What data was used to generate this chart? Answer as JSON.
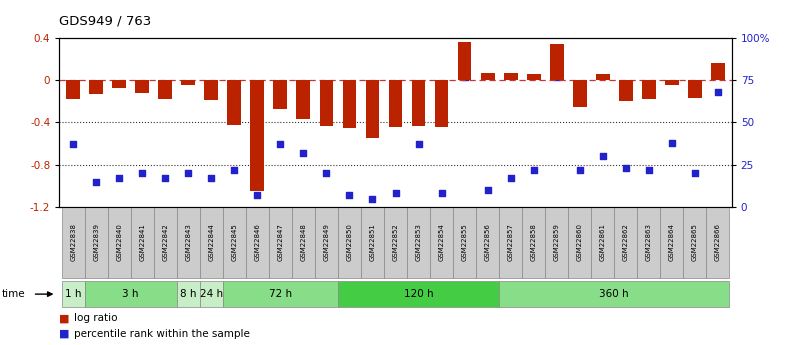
{
  "title": "GDS949 / 763",
  "samples": [
    "GSM22838",
    "GSM22839",
    "GSM22840",
    "GSM22841",
    "GSM22842",
    "GSM22843",
    "GSM22844",
    "GSM22845",
    "GSM22846",
    "GSM22847",
    "GSM22848",
    "GSM22849",
    "GSM22850",
    "GSM22851",
    "GSM22852",
    "GSM22853",
    "GSM22854",
    "GSM22855",
    "GSM22856",
    "GSM22857",
    "GSM22858",
    "GSM22859",
    "GSM22860",
    "GSM22861",
    "GSM22862",
    "GSM22863",
    "GSM22864",
    "GSM22865",
    "GSM22866"
  ],
  "log_ratio": [
    -0.18,
    -0.13,
    -0.07,
    -0.12,
    -0.18,
    -0.05,
    -0.19,
    -0.42,
    -1.05,
    -0.27,
    -0.37,
    -0.43,
    -0.45,
    -0.55,
    -0.44,
    -0.43,
    -0.44,
    0.36,
    0.07,
    0.07,
    0.06,
    0.34,
    -0.25,
    0.06,
    -0.2,
    -0.18,
    -0.05,
    -0.17,
    0.16
  ],
  "percentile": [
    37,
    15,
    17,
    20,
    17,
    20,
    17,
    22,
    7,
    37,
    32,
    20,
    7,
    5,
    8,
    37,
    8,
    77,
    10,
    17,
    22,
    77,
    22,
    30,
    23,
    22,
    38,
    20,
    68
  ],
  "time_groups": [
    {
      "label": "1 h",
      "start": 0,
      "end": 1,
      "color": "#c8eec8"
    },
    {
      "label": "3 h",
      "start": 1,
      "end": 5,
      "color": "#88dd88"
    },
    {
      "label": "8 h",
      "start": 5,
      "end": 6,
      "color": "#c8eec8"
    },
    {
      "label": "24 h",
      "start": 6,
      "end": 7,
      "color": "#c8eec8"
    },
    {
      "label": "72 h",
      "start": 7,
      "end": 12,
      "color": "#88dd88"
    },
    {
      "label": "120 h",
      "start": 12,
      "end": 19,
      "color": "#44cc44"
    },
    {
      "label": "360 h",
      "start": 19,
      "end": 29,
      "color": "#88dd88"
    }
  ],
  "ylim_left": [
    -1.2,
    0.4
  ],
  "ylim_right": [
    0,
    100
  ],
  "bar_color": "#bb2200",
  "dot_color": "#2222cc",
  "grid_color": "#333333",
  "dashed_color": "#cc3333",
  "label_box_color": "#cccccc",
  "label_box_edge": "#888888"
}
